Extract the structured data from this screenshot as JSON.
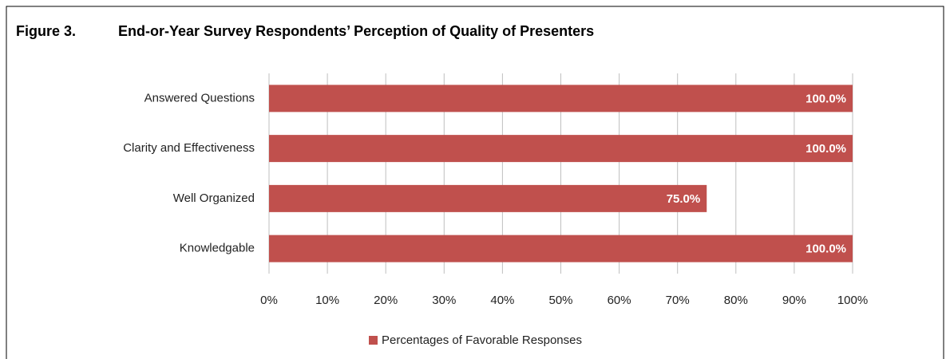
{
  "chart_data": {
    "type": "hbar",
    "figure_label": "Figure 3.",
    "title": "End-or-Year Survey Respondents’ Perception of Quality of Presenters",
    "categories": [
      "Answered Questions",
      "Clarity and Effectiveness",
      "Well Organized",
      "Knowledgable"
    ],
    "series": [
      {
        "name": "Percentages of Favorable Responses",
        "color": "#c0504d",
        "values": [
          100,
          100,
          75,
          100
        ],
        "value_labels": [
          "100.0%",
          "100.0%",
          "75.0%",
          "100.0%"
        ]
      }
    ],
    "xlim": [
      0,
      100
    ],
    "xticks": [
      {
        "value": 0,
        "label": "0%"
      },
      {
        "value": 10,
        "label": "10%"
      },
      {
        "value": 20,
        "label": "20%"
      },
      {
        "value": 30,
        "label": "30%"
      },
      {
        "value": 40,
        "label": "40%"
      },
      {
        "value": 50,
        "label": "50%"
      },
      {
        "value": 60,
        "label": "60%"
      },
      {
        "value": 70,
        "label": "70%"
      },
      {
        "value": 80,
        "label": "80%"
      },
      {
        "value": 90,
        "label": "90%"
      },
      {
        "value": 100,
        "label": "100%"
      }
    ],
    "grid": true,
    "legend": "bottom"
  }
}
